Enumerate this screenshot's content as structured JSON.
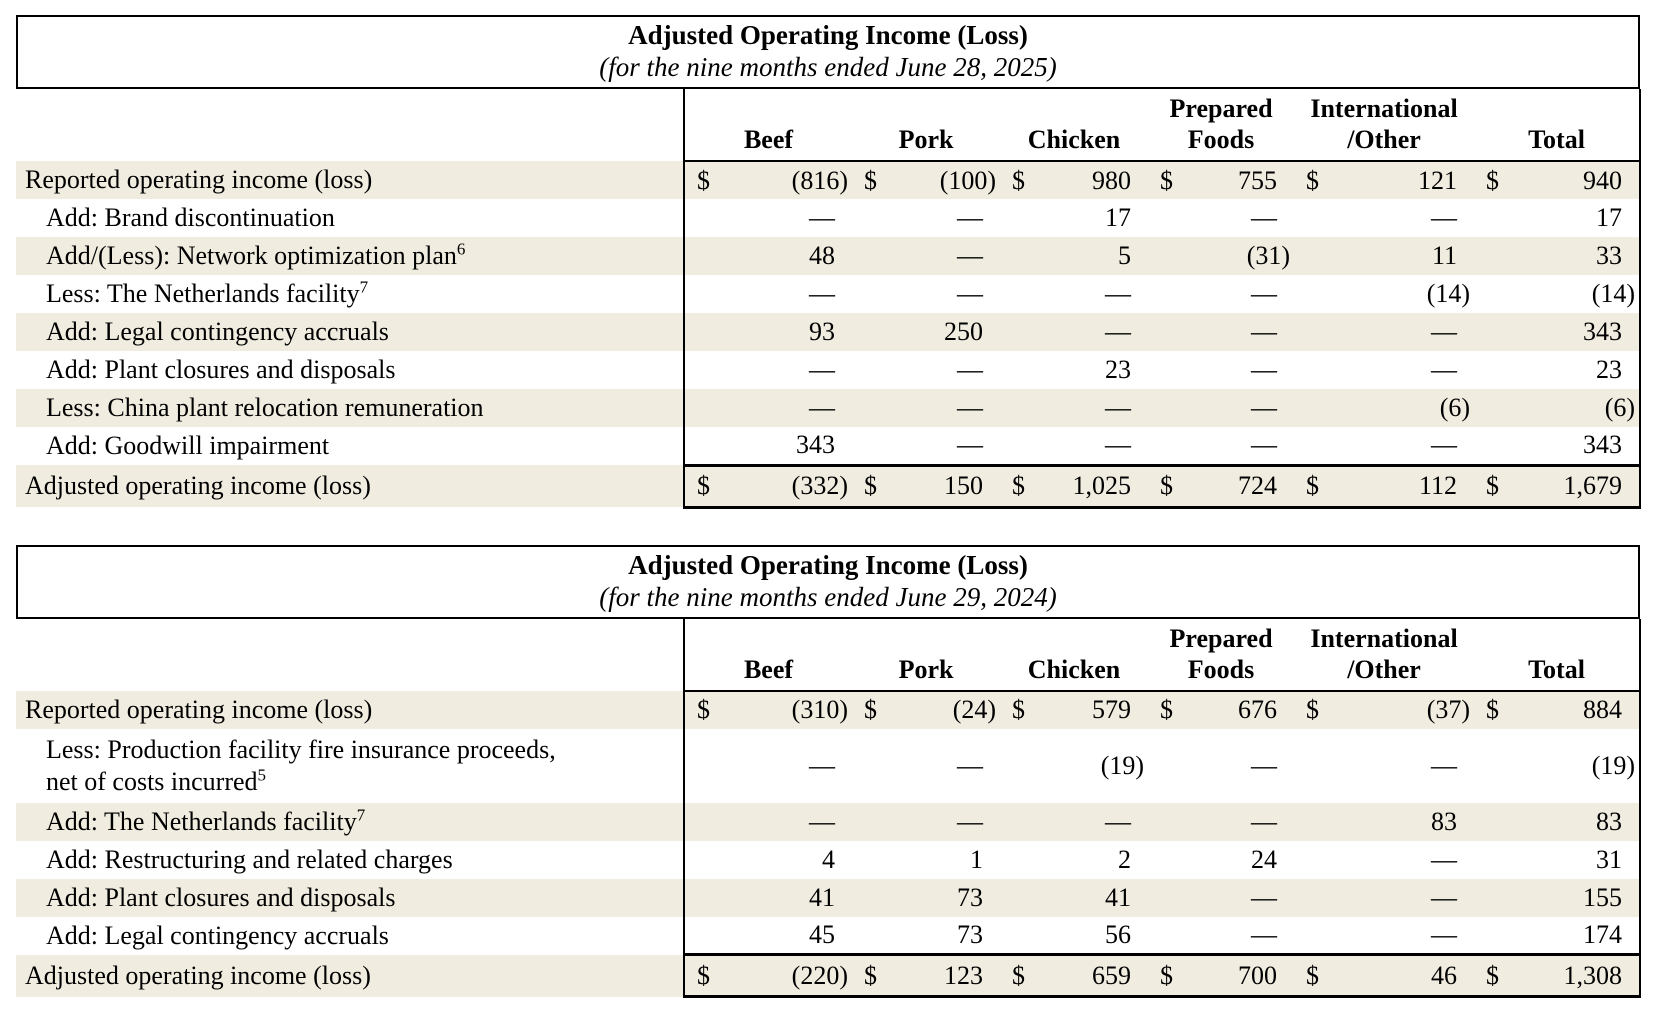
{
  "page": {
    "background": "#ffffff",
    "row_shade_color": "#f0ece0",
    "border_color": "#000000"
  },
  "tables": [
    {
      "title": "Adjusted Operating Income (Loss)",
      "subtitle": "(for the nine months ended June 28, 2025)",
      "currency_symbol": "$",
      "columns": [
        "Beef",
        "Pork",
        "Chicken",
        "Prepared\nFoods",
        "International\n/Other",
        "Total"
      ],
      "rows": [
        {
          "label": "Reported operating income (loss)",
          "sup": "",
          "indent": false,
          "dollar": true,
          "shaded": true,
          "total": false,
          "tall": false,
          "values": [
            "(816)",
            "(100)",
            "980",
            "755",
            "121",
            "940"
          ]
        },
        {
          "label": "Add: Brand discontinuation",
          "sup": "",
          "indent": true,
          "dollar": false,
          "shaded": false,
          "total": false,
          "tall": false,
          "values": [
            "—",
            "—",
            "17",
            "—",
            "—",
            "17"
          ]
        },
        {
          "label": "Add/(Less): Network optimization plan",
          "sup": "6",
          "indent": true,
          "dollar": false,
          "shaded": true,
          "total": false,
          "tall": false,
          "values": [
            "48",
            "—",
            "5",
            "(31)",
            "11",
            "33"
          ]
        },
        {
          "label": "Less: The Netherlands facility",
          "sup": "7",
          "indent": true,
          "dollar": false,
          "shaded": false,
          "total": false,
          "tall": false,
          "values": [
            "—",
            "—",
            "—",
            "—",
            "(14)",
            "(14)"
          ]
        },
        {
          "label": "Add: Legal contingency accruals",
          "sup": "",
          "indent": true,
          "dollar": false,
          "shaded": true,
          "total": false,
          "tall": false,
          "values": [
            "93",
            "250",
            "—",
            "—",
            "—",
            "343"
          ]
        },
        {
          "label": "Add: Plant closures and disposals",
          "sup": "",
          "indent": true,
          "dollar": false,
          "shaded": false,
          "total": false,
          "tall": false,
          "values": [
            "—",
            "—",
            "23",
            "—",
            "—",
            "23"
          ]
        },
        {
          "label": "Less: China plant relocation remuneration",
          "sup": "",
          "indent": true,
          "dollar": false,
          "shaded": true,
          "total": false,
          "tall": false,
          "values": [
            "—",
            "—",
            "—",
            "—",
            "(6)",
            "(6)"
          ]
        },
        {
          "label": "Add: Goodwill impairment",
          "sup": "",
          "indent": true,
          "dollar": false,
          "shaded": false,
          "total": false,
          "tall": false,
          "values": [
            "343",
            "—",
            "—",
            "—",
            "—",
            "343"
          ]
        },
        {
          "label": "Adjusted operating income (loss)",
          "sup": "",
          "indent": false,
          "dollar": true,
          "shaded": true,
          "total": true,
          "tall": false,
          "values": [
            "(332)",
            "150",
            "1,025",
            "724",
            "112",
            "1,679"
          ]
        }
      ]
    },
    {
      "title": "Adjusted Operating Income (Loss)",
      "subtitle": "(for the nine months ended June 29, 2024)",
      "currency_symbol": "$",
      "columns": [
        "Beef",
        "Pork",
        "Chicken",
        "Prepared\nFoods",
        "International\n/Other",
        "Total"
      ],
      "rows": [
        {
          "label": "Reported operating income (loss)",
          "sup": "",
          "indent": false,
          "dollar": true,
          "shaded": true,
          "total": false,
          "tall": false,
          "values": [
            "(310)",
            "(24)",
            "579",
            "676",
            "(37)",
            "884"
          ]
        },
        {
          "label": "Less: Production facility fire insurance proceeds,\nnet of costs incurred",
          "sup": "5",
          "indent": true,
          "dollar": false,
          "shaded": false,
          "total": false,
          "tall": true,
          "values": [
            "—",
            "—",
            "(19)",
            "—",
            "—",
            "(19)"
          ]
        },
        {
          "label": "Add: The Netherlands facility",
          "sup": "7",
          "indent": true,
          "dollar": false,
          "shaded": true,
          "total": false,
          "tall": false,
          "values": [
            "—",
            "—",
            "—",
            "—",
            "83",
            "83"
          ]
        },
        {
          "label": "Add: Restructuring and related charges",
          "sup": "",
          "indent": true,
          "dollar": false,
          "shaded": false,
          "total": false,
          "tall": false,
          "values": [
            "4",
            "1",
            "2",
            "24",
            "—",
            "31"
          ]
        },
        {
          "label": "Add: Plant closures and disposals",
          "sup": "",
          "indent": true,
          "dollar": false,
          "shaded": true,
          "total": false,
          "tall": false,
          "values": [
            "41",
            "73",
            "41",
            "—",
            "—",
            "155"
          ]
        },
        {
          "label": "Add: Legal contingency accruals",
          "sup": "",
          "indent": true,
          "dollar": false,
          "shaded": false,
          "total": false,
          "tall": false,
          "values": [
            "45",
            "73",
            "56",
            "—",
            "—",
            "174"
          ]
        },
        {
          "label": "Adjusted operating income (loss)",
          "sup": "",
          "indent": false,
          "dollar": true,
          "shaded": true,
          "total": true,
          "tall": false,
          "values": [
            "(220)",
            "123",
            "659",
            "700",
            "46",
            "1,308"
          ]
        }
      ]
    }
  ]
}
